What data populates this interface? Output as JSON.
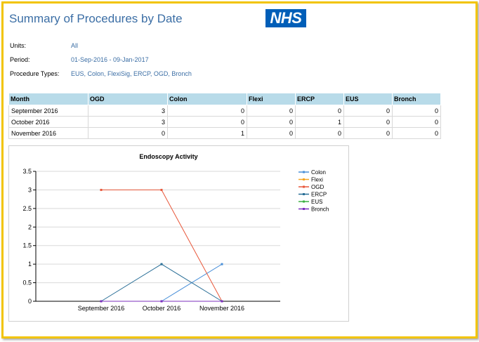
{
  "page_title": "Summary of Procedures by Date",
  "logo_text": "NHS",
  "filters": [
    {
      "label": "Units:",
      "value": "All"
    },
    {
      "label": "Period:",
      "value": "01-Sep-2016 - 09-Jan-2017"
    },
    {
      "label": "Procedure Types:",
      "value": "EUS, Colon, FlexiSig, ERCP, OGD, Bronch"
    }
  ],
  "table": {
    "columns": [
      "Month",
      "OGD",
      "Colon",
      "Flexi",
      "ERCP",
      "EUS",
      "Bronch"
    ],
    "rows": [
      [
        "September 2016",
        "3",
        "0",
        "0",
        "0",
        "0",
        "0"
      ],
      [
        "October 2016",
        "3",
        "0",
        "0",
        "1",
        "0",
        "0"
      ],
      [
        "November 2016",
        "0",
        "1",
        "0",
        "0",
        "0",
        "0"
      ]
    ]
  },
  "colors": {
    "frame": "#f2c400",
    "title": "#3b6ea5",
    "link": "#3b6ea5",
    "header_bg": "#b8dbe9",
    "nhs_blue": "#005eb8"
  },
  "chart_data": {
    "type": "line",
    "title": "Endoscopy Activity",
    "categories": [
      "September 2016",
      "October 2016",
      "November 2016"
    ],
    "ylim": [
      0,
      3.5
    ],
    "yticks": [
      "0",
      "0.5",
      "1",
      "1.5",
      "2",
      "2.5",
      "3",
      "3.5"
    ],
    "grid": true,
    "legend_position": "right",
    "series": [
      {
        "name": "Colon",
        "values": [
          0,
          0,
          1
        ],
        "color": "#4a90d9"
      },
      {
        "name": "Flexi",
        "values": [
          0,
          0,
          0
        ],
        "color": "#f5a623"
      },
      {
        "name": "OGD",
        "values": [
          3,
          3,
          0
        ],
        "color": "#e8573a"
      },
      {
        "name": "ERCP",
        "values": [
          0,
          1,
          0
        ],
        "color": "#2a6f97"
      },
      {
        "name": "EUS",
        "values": [
          0,
          0,
          0
        ],
        "color": "#3cb043"
      },
      {
        "name": "Bronch",
        "values": [
          0,
          0,
          0
        ],
        "color": "#7b2fbe"
      }
    ]
  }
}
